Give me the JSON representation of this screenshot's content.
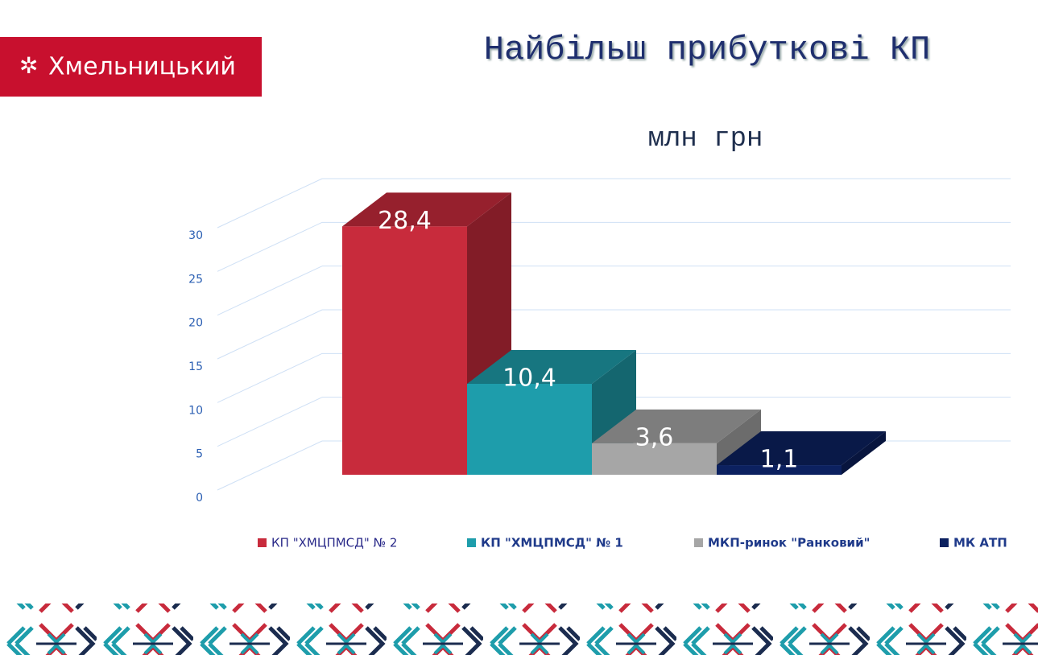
{
  "logo_text": "Хмельницький",
  "chart_data": {
    "type": "bar3d",
    "title": "Найбільш прибуткові КП",
    "subtitle": "млн грн",
    "categories": [
      null
    ],
    "series": [
      {
        "name": "КП \"ХМЦПМСД\" № 2",
        "color": "#c82b3c",
        "values": [
          28.4
        ],
        "value_labels": [
          "28,4"
        ]
      },
      {
        "name": "КП \"ХМЦПМСД\" № 1",
        "color": "#1e9dab",
        "values": [
          10.4
        ],
        "value_labels": [
          "10,4"
        ]
      },
      {
        "name": "МКП-ринок \"Ранковий\"",
        "color": "#a6a6a6",
        "values": [
          3.6
        ],
        "value_labels": [
          "3,6"
        ]
      },
      {
        "name": "МК АТП",
        "color": "#0c2160",
        "values": [
          1.1
        ],
        "value_labels": [
          "1,1"
        ]
      }
    ],
    "ylim": [
      0,
      30
    ],
    "yticks": [
      0,
      5,
      10,
      15,
      20,
      25,
      30
    ],
    "grid": true,
    "legend": "bottom"
  }
}
